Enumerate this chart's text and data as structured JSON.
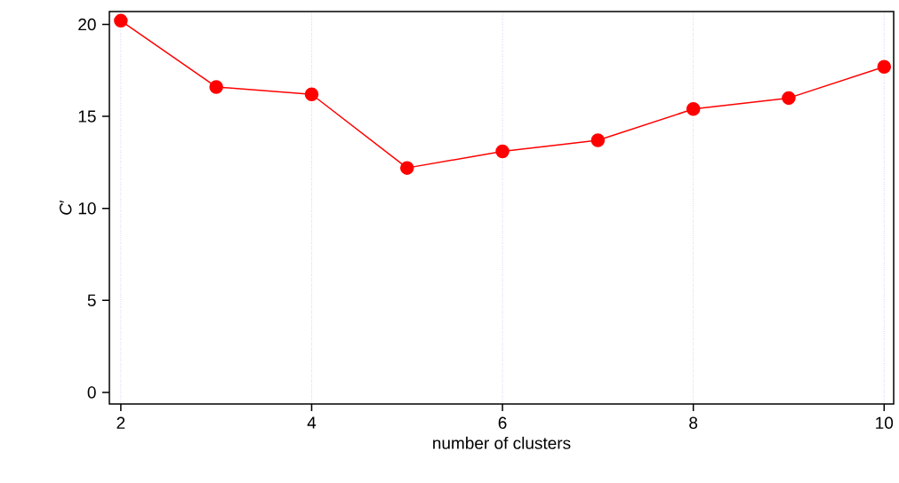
{
  "chart_data": {
    "type": "line",
    "xlabel": "number of clusters",
    "ylabel": "*C*′",
    "x": [
      2,
      3,
      4,
      5,
      6,
      7,
      8,
      9,
      10
    ],
    "series": [
      {
        "color": "#ff0000",
        "values": [
          20.2,
          16.6,
          16.2,
          12.2,
          13.1,
          13.7,
          15.4,
          16.0,
          17.7
        ]
      }
    ],
    "xlim": [
      1.88,
      10.1
    ],
    "ylim": [
      -0.63,
      20.7
    ],
    "xticks": [
      2,
      4,
      6,
      8,
      10
    ],
    "yticks": [
      0,
      5,
      10,
      15,
      20
    ],
    "grid": "x",
    "marker": "circle",
    "line_style": "solid"
  }
}
